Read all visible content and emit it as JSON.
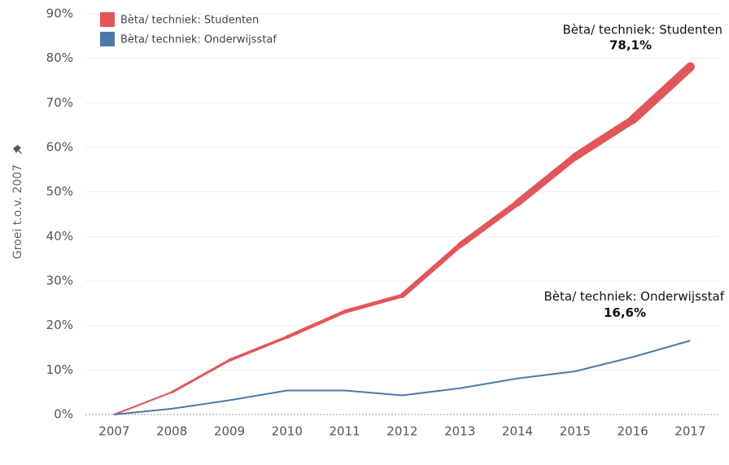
{
  "chart_data": {
    "type": "line",
    "y_label": "Groei t.o.v. 2007",
    "categories": [
      "2007",
      "2008",
      "2009",
      "2010",
      "2011",
      "2012",
      "2013",
      "2014",
      "2015",
      "2016",
      "2017"
    ],
    "series": [
      {
        "name": "Bèta/ techniek: Studenten",
        "color": "#e15759",
        "values": [
          0,
          5.0,
          12.2,
          17.4,
          23.1,
          26.7,
          38.0,
          47.5,
          57.9,
          66.2,
          78.1
        ],
        "value_labels": [
          null,
          null,
          null,
          null,
          null,
          null,
          null,
          null,
          null,
          null,
          "78,1%"
        ]
      },
      {
        "name": "Bèta/ techniek: Onderwijsstaf",
        "color": "#4e79a7",
        "values": [
          0,
          1.3,
          3.2,
          5.4,
          5.4,
          4.3,
          5.9,
          8.1,
          9.7,
          12.9,
          16.6
        ],
        "value_labels": [
          null,
          null,
          null,
          null,
          null,
          null,
          null,
          null,
          null,
          null,
          "16,6%"
        ]
      }
    ],
    "ylim": [
      0,
      90
    ],
    "yticks": [
      {
        "value": 0,
        "label": "0%"
      },
      {
        "value": 10,
        "label": "10%"
      },
      {
        "value": 20,
        "label": "20%"
      },
      {
        "value": 30,
        "label": "30%"
      },
      {
        "value": 40,
        "label": "40%"
      },
      {
        "value": 50,
        "label": "50%"
      },
      {
        "value": 60,
        "label": "60%"
      },
      {
        "value": 70,
        "label": "70%"
      },
      {
        "value": 80,
        "label": "80%"
      },
      {
        "value": 90,
        "label": "90%"
      }
    ],
    "grid": true,
    "legend": "top-left"
  }
}
